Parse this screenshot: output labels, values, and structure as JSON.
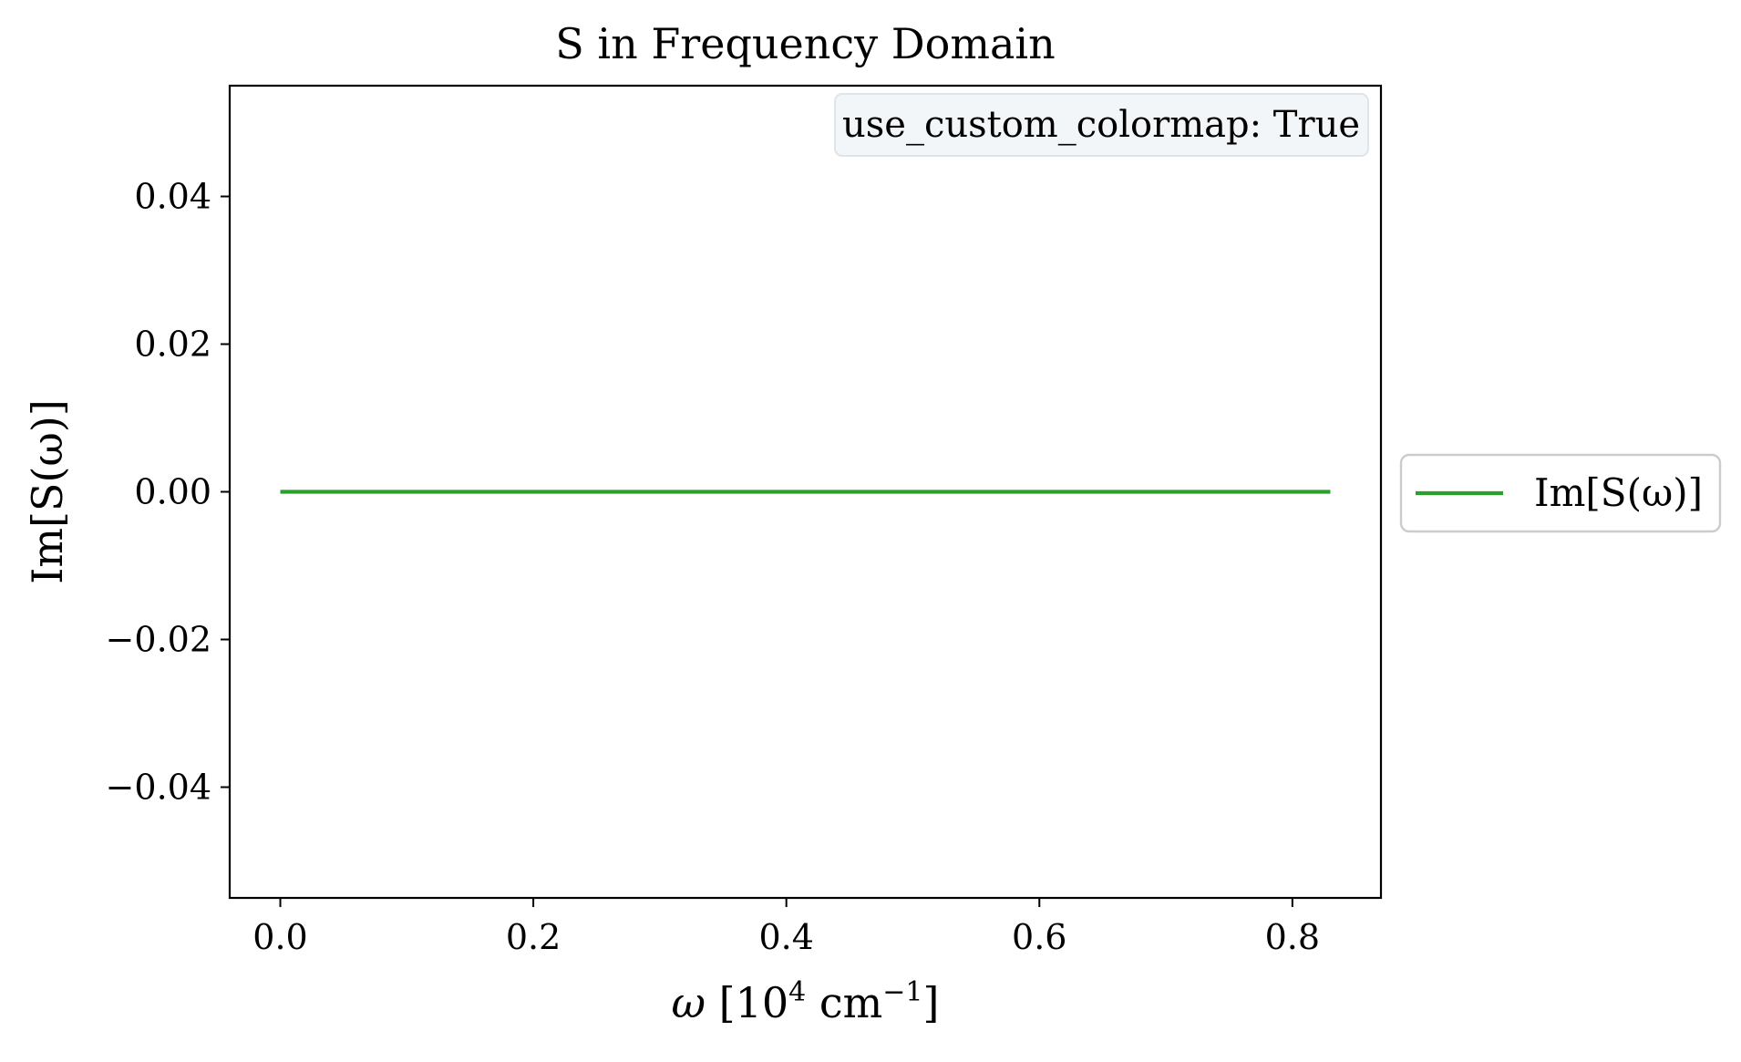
{
  "chart_data": {
    "type": "line",
    "title": "S in Frequency Domain",
    "xlabel": "ω [10⁴ cm⁻¹]",
    "xlabel_parts": {
      "symbol": "ω",
      "open": " [10",
      "exp": "4",
      "unit": " cm",
      "unit_exp": "−1",
      "close": "]"
    },
    "ylabel": "Im[S(ω)]",
    "xlim": [
      -0.04,
      0.87
    ],
    "ylim": [
      -0.055,
      0.055
    ],
    "xticks": [
      0.0,
      0.2,
      0.4,
      0.6,
      0.8
    ],
    "xtick_labels": [
      "0.0",
      "0.2",
      "0.4",
      "0.6",
      "0.8"
    ],
    "yticks": [
      -0.04,
      -0.02,
      0.0,
      0.02,
      0.04
    ],
    "ytick_labels": [
      "−0.04",
      "−0.02",
      "0.00",
      "0.02",
      "0.04"
    ],
    "grid": false,
    "annotation": "use_custom_colormap: True",
    "legend_position": "outside-right",
    "series": [
      {
        "name": "Im[S(ω)]",
        "color": "#2ca02c",
        "x": [
          0.0,
          0.83
        ],
        "y": [
          0.0,
          0.0
        ]
      }
    ]
  }
}
